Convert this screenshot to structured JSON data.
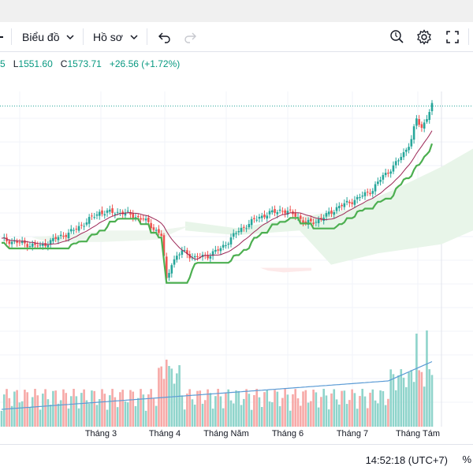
{
  "toolbar": {
    "chart_label": "Biểu đồ",
    "profile_label": "Hồ sơ",
    "icons": [
      "chevron-down-icon",
      "undo-icon",
      "redo-icon",
      "alert-icon",
      "gear-icon",
      "fullscreen-icon",
      "camera-icon"
    ]
  },
  "ohlc": {
    "left_fragment": "5",
    "low_key": "L",
    "low_value": "1551.60",
    "close_key": "C",
    "close_value": "1573.71",
    "change": "+26.56 (+1.72%)"
  },
  "colors": {
    "up": "#26a69a",
    "down": "#ef5350",
    "green_line": "#4caf50",
    "ma_line": "#9c2756",
    "volume_ma": "#2962ff",
    "cloud": "#e8f5e9"
  },
  "chart_data": {
    "type": "candlestick",
    "x_labels": [
      "Tháng 3",
      "Tháng 4",
      "Tháng Năm",
      "Tháng 6",
      "Tháng 7",
      "Tháng Tám"
    ],
    "price_axis": "hidden",
    "indicators": [
      "moving-average",
      "trailing-stop",
      "ichimoku-cloud",
      "volume",
      "volume-moving-average"
    ]
  },
  "status": {
    "time": "14:52:18 (UTC+7)",
    "percent_symbol": "%"
  }
}
